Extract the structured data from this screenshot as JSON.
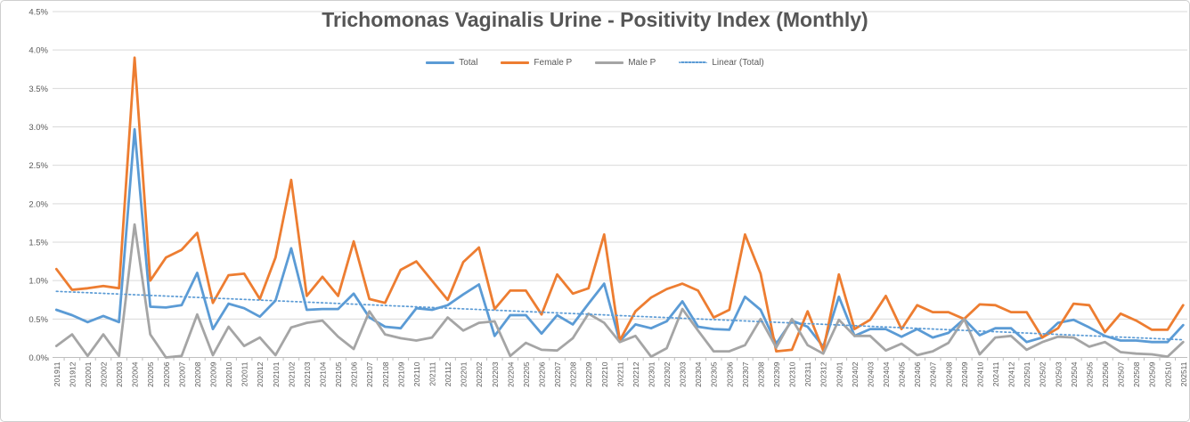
{
  "title_bar": {
    "note": ""
  },
  "colors": {
    "total": "#5B9BD5",
    "female": "#ED7D31",
    "male": "#A5A5A5",
    "trend": "#5B9BD5",
    "gridline": "#D9D9D9",
    "axis_line": "#BFBFBF",
    "tick_text": "#595959",
    "title_text": "#565656"
  },
  "chart_data": {
    "type": "line",
    "title": "Trichomonas Vaginalis Urine - Positivity Index (Monthly)",
    "legend_position": "top",
    "grid": true,
    "y_axis": {
      "min": 0,
      "max": 4.5,
      "step": 0.5,
      "format": "percent",
      "tick_labels": [
        "0.0%",
        "0.5%",
        "1.0%",
        "1.5%",
        "2.0%",
        "2.5%",
        "3.0%",
        "3.5%",
        "4.0%",
        "4.5%"
      ]
    },
    "categories": [
      "201911",
      "201912",
      "202001",
      "202002",
      "202003",
      "202004",
      "202005",
      "202006",
      "202007",
      "202008",
      "202009",
      "202010",
      "202011",
      "202012",
      "202101",
      "202102",
      "202103",
      "202104",
      "202105",
      "202106",
      "202107",
      "202108",
      "202109",
      "202110",
      "202111",
      "202112",
      "202201",
      "202202",
      "202203",
      "202204",
      "202205",
      "202206",
      "202207",
      "202208",
      "202209",
      "202210",
      "202211",
      "202212",
      "202301",
      "202302",
      "202303",
      "202304",
      "202305",
      "202306",
      "202307",
      "202308",
      "202309",
      "202310",
      "202311",
      "202312",
      "202401",
      "202402",
      "202403",
      "202404",
      "202405",
      "202406",
      "202407",
      "202408",
      "202409",
      "202410",
      "202411",
      "202412",
      "202501",
      "202502",
      "202503",
      "202504",
      "202505",
      "202506",
      "202507",
      "202508",
      "202509",
      "202510",
      "202511"
    ],
    "series": [
      {
        "name": "Total",
        "color": "#5B9BD5",
        "values": [
          0.62,
          0.55,
          0.46,
          0.54,
          0.46,
          2.97,
          0.66,
          0.65,
          0.68,
          1.1,
          0.37,
          0.7,
          0.64,
          0.53,
          0.74,
          1.42,
          0.62,
          0.63,
          0.63,
          0.83,
          0.52,
          0.4,
          0.38,
          0.64,
          0.62,
          0.68,
          0.82,
          0.95,
          0.28,
          0.55,
          0.55,
          0.31,
          0.55,
          0.43,
          0.7,
          0.96,
          0.21,
          0.43,
          0.38,
          0.47,
          0.73,
          0.4,
          0.37,
          0.36,
          0.79,
          0.62,
          0.18,
          0.48,
          0.4,
          0.14,
          0.79,
          0.28,
          0.37,
          0.37,
          0.27,
          0.37,
          0.26,
          0.32,
          0.5,
          0.29,
          0.38,
          0.38,
          0.2,
          0.26,
          0.45,
          0.49,
          0.39,
          0.28,
          0.22,
          0.22,
          0.2,
          0.2,
          0.42
        ]
      },
      {
        "name": "Female P",
        "color": "#ED7D31",
        "values": [
          1.15,
          0.88,
          0.9,
          0.93,
          0.9,
          3.9,
          1.0,
          1.3,
          1.4,
          1.62,
          0.71,
          1.07,
          1.09,
          0.76,
          1.3,
          2.31,
          0.8,
          1.05,
          0.8,
          1.51,
          0.76,
          0.71,
          1.14,
          1.25,
          1.0,
          0.75,
          1.24,
          1.43,
          0.63,
          0.87,
          0.87,
          0.56,
          1.08,
          0.83,
          0.9,
          1.6,
          0.22,
          0.6,
          0.78,
          0.89,
          0.96,
          0.87,
          0.52,
          0.62,
          1.6,
          1.09,
          0.08,
          0.1,
          0.6,
          0.09,
          1.08,
          0.37,
          0.49,
          0.8,
          0.37,
          0.68,
          0.59,
          0.59,
          0.5,
          0.69,
          0.68,
          0.59,
          0.59,
          0.26,
          0.38,
          0.7,
          0.68,
          0.33,
          0.57,
          0.48,
          0.36,
          0.36,
          0.68
        ]
      },
      {
        "name": "Male P",
        "color": "#A5A5A5",
        "values": [
          0.15,
          0.3,
          0.02,
          0.3,
          0.02,
          1.73,
          0.3,
          0.0,
          0.02,
          0.56,
          0.03,
          0.4,
          0.15,
          0.26,
          0.03,
          0.39,
          0.45,
          0.48,
          0.27,
          0.11,
          0.6,
          0.3,
          0.25,
          0.22,
          0.26,
          0.52,
          0.35,
          0.45,
          0.47,
          0.02,
          0.19,
          0.1,
          0.09,
          0.25,
          0.57,
          0.45,
          0.2,
          0.28,
          0.01,
          0.12,
          0.63,
          0.35,
          0.08,
          0.08,
          0.16,
          0.5,
          0.13,
          0.5,
          0.16,
          0.05,
          0.49,
          0.28,
          0.28,
          0.09,
          0.18,
          0.03,
          0.08,
          0.19,
          0.5,
          0.04,
          0.26,
          0.28,
          0.1,
          0.2,
          0.27,
          0.26,
          0.14,
          0.2,
          0.07,
          0.05,
          0.04,
          0.01,
          0.2
        ]
      }
    ],
    "trendline": {
      "name": "Linear (Total)",
      "basis": "Total",
      "style": "dotted",
      "color": "#5B9BD5",
      "start": 0.86,
      "end": 0.23
    }
  }
}
